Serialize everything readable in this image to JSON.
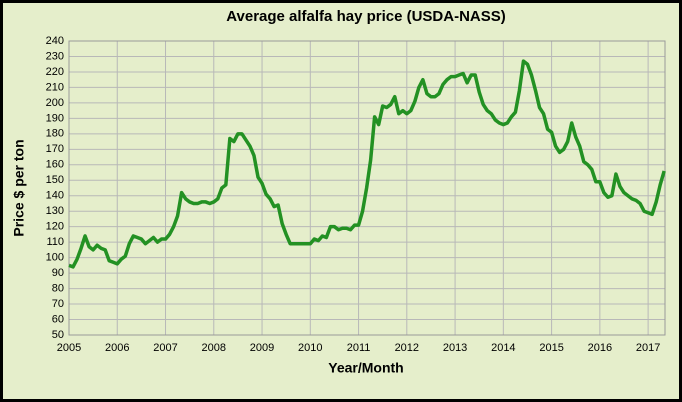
{
  "chart_data": {
    "type": "line",
    "title": "Average alfalfa hay price (USDA-NASS)",
    "x_label": "Year/Month",
    "y_label": "Price $ per ton",
    "color": "#239123",
    "grid": true,
    "xlim": [
      2005,
      2017.35
    ],
    "xticks": [
      2005,
      2006,
      2007,
      2008,
      2009,
      2010,
      2011,
      2012,
      2013,
      2014,
      2015,
      2016,
      2017
    ],
    "ylim": [
      50,
      240
    ],
    "yticks": [
      50,
      60,
      70,
      80,
      90,
      100,
      110,
      120,
      130,
      140,
      150,
      160,
      170,
      180,
      190,
      200,
      210,
      220,
      230,
      240
    ],
    "x": [
      2005,
      2005.083,
      2005.167,
      2005.25,
      2005.333,
      2005.417,
      2005.5,
      2005.583,
      2005.667,
      2005.75,
      2005.833,
      2005.917,
      2006,
      2006.083,
      2006.167,
      2006.25,
      2006.333,
      2006.417,
      2006.5,
      2006.583,
      2006.667,
      2006.75,
      2006.833,
      2006.917,
      2007,
      2007.083,
      2007.167,
      2007.25,
      2007.333,
      2007.417,
      2007.5,
      2007.583,
      2007.667,
      2007.75,
      2007.833,
      2007.917,
      2008,
      2008.083,
      2008.167,
      2008.25,
      2008.333,
      2008.417,
      2008.5,
      2008.583,
      2008.667,
      2008.75,
      2008.833,
      2008.917,
      2009,
      2009.083,
      2009.167,
      2009.25,
      2009.333,
      2009.417,
      2009.5,
      2009.583,
      2009.667,
      2009.75,
      2009.833,
      2009.917,
      2010,
      2010.083,
      2010.167,
      2010.25,
      2010.333,
      2010.417,
      2010.5,
      2010.583,
      2010.667,
      2010.75,
      2010.833,
      2010.917,
      2011,
      2011.083,
      2011.167,
      2011.25,
      2011.333,
      2011.417,
      2011.5,
      2011.583,
      2011.667,
      2011.75,
      2011.833,
      2011.917,
      2012,
      2012.083,
      2012.167,
      2012.25,
      2012.333,
      2012.417,
      2012.5,
      2012.583,
      2012.667,
      2012.75,
      2012.833,
      2012.917,
      2013,
      2013.083,
      2013.167,
      2013.25,
      2013.333,
      2013.417,
      2013.5,
      2013.583,
      2013.667,
      2013.75,
      2013.833,
      2013.917,
      2014,
      2014.083,
      2014.167,
      2014.25,
      2014.333,
      2014.417,
      2014.5,
      2014.583,
      2014.667,
      2014.75,
      2014.833,
      2014.917,
      2015,
      2015.083,
      2015.167,
      2015.25,
      2015.333,
      2015.417,
      2015.5,
      2015.583,
      2015.667,
      2015.75,
      2015.833,
      2015.917,
      2016,
      2016.083,
      2016.167,
      2016.25,
      2016.333,
      2016.417,
      2016.5,
      2016.583,
      2016.667,
      2016.75,
      2016.833,
      2016.917,
      2017,
      2017.083,
      2017.167,
      2017.25,
      2017.333
    ],
    "values": [
      95,
      94,
      99,
      106,
      114,
      107,
      105,
      108,
      106,
      105,
      98,
      97,
      96,
      99,
      101,
      109,
      114,
      113,
      112,
      109,
      111,
      113,
      110,
      112,
      112,
      115,
      120,
      127,
      142,
      138,
      136,
      135,
      135,
      136,
      136,
      135,
      136,
      138,
      145,
      147,
      177,
      175,
      180,
      180,
      176,
      172,
      166,
      152,
      148,
      141,
      138,
      133,
      134,
      122,
      115,
      109,
      109,
      109,
      109,
      109,
      109,
      112,
      111,
      114,
      113,
      120,
      120,
      118,
      119,
      119,
      118,
      121,
      121,
      130,
      145,
      163,
      191,
      186,
      198,
      197,
      199,
      204,
      193,
      195,
      193,
      195,
      201,
      210,
      215,
      206,
      204,
      204,
      206,
      212,
      215,
      217,
      217,
      218,
      219,
      213,
      218,
      218,
      207,
      199,
      195,
      193,
      189,
      187,
      186,
      187,
      191,
      194,
      208,
      227,
      225,
      218,
      208,
      197,
      193,
      183,
      181,
      172,
      168,
      170,
      175,
      187,
      178,
      172,
      162,
      160,
      157,
      149,
      149,
      142,
      139,
      140,
      154,
      146,
      142,
      140,
      138,
      137,
      135,
      130,
      129,
      128,
      136,
      147,
      156
    ]
  }
}
